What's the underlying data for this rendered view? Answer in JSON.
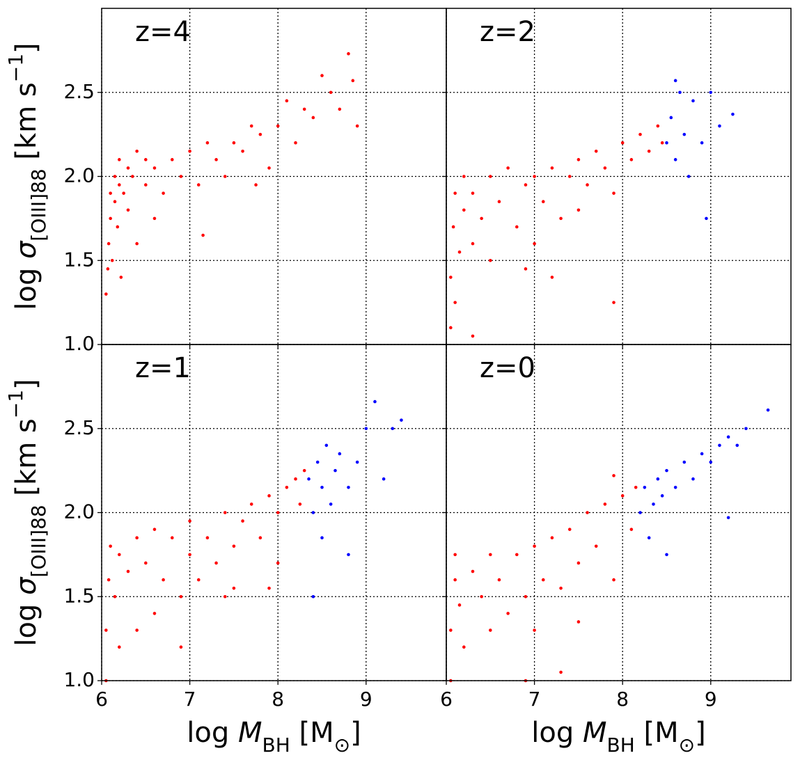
{
  "chart_data": [
    {
      "type": "scatter",
      "annotation": "z=4",
      "ylabel": [
        "log ",
        "σ",
        "[OIII]88",
        " [km s",
        "−1",
        "]"
      ],
      "xlim": [
        6,
        9.91
      ],
      "ylim": [
        1,
        3
      ],
      "xticks": [
        6,
        7,
        8,
        9
      ],
      "yticks": [
        {
          "value": 1,
          "label": "1.0"
        },
        1.5,
        {
          "value": 2,
          "label": "2.0"
        },
        2.5
      ],
      "grid": true,
      "series": [
        {
          "color": "#ff0000",
          "x": [
            6.05,
            6.07,
            6.08,
            6.1,
            6.1,
            6.12,
            6.15,
            6.15,
            6.18,
            6.2,
            6.2,
            6.25,
            6.3,
            6.3,
            6.35,
            6.4,
            6.4,
            6.5,
            6.5,
            6.6,
            6.7,
            6.8,
            6.9,
            7.0,
            7.1,
            7.2,
            7.3,
            7.4,
            7.5,
            7.6,
            7.7,
            7.8,
            7.9,
            8.0,
            8.1,
            8.2,
            8.3,
            8.4,
            8.5,
            8.6,
            8.7,
            8.8,
            8.9,
            8.85,
            6.22,
            6.6,
            7.15,
            7.75
          ],
          "values": [
            1.3,
            1.45,
            1.6,
            1.75,
            1.9,
            1.5,
            1.85,
            2.0,
            1.7,
            1.95,
            2.1,
            1.9,
            2.05,
            1.8,
            2.0,
            2.15,
            1.6,
            1.95,
            2.1,
            2.05,
            1.9,
            2.1,
            2.0,
            2.15,
            1.95,
            2.2,
            2.1,
            2.0,
            2.2,
            2.15,
            2.3,
            2.25,
            2.05,
            2.3,
            2.45,
            2.2,
            2.4,
            2.35,
            2.6,
            2.5,
            2.4,
            2.73,
            2.3,
            2.57,
            1.4,
            1.75,
            1.65,
            1.95
          ]
        }
      ]
    },
    {
      "type": "scatter",
      "annotation": "z=2",
      "xlim": [
        6,
        9.91
      ],
      "ylim": [
        1,
        3
      ],
      "xticks": [
        6,
        7,
        8,
        9
      ],
      "yticks": [
        1,
        1.5,
        2,
        2.5
      ],
      "grid": true,
      "series": [
        {
          "color": "#ff0000",
          "x": [
            6.05,
            6.05,
            6.08,
            6.1,
            6.1,
            6.15,
            6.2,
            6.2,
            6.3,
            6.3,
            6.4,
            6.5,
            6.5,
            6.6,
            6.7,
            6.8,
            6.9,
            7.0,
            7.0,
            7.1,
            7.2,
            7.3,
            7.4,
            7.5,
            7.5,
            7.6,
            7.7,
            7.8,
            7.9,
            8.0,
            8.1,
            8.2,
            8.3,
            8.4,
            8.45,
            7.9,
            7.2,
            6.9,
            6.3
          ],
          "values": [
            1.1,
            1.4,
            1.7,
            1.9,
            1.25,
            1.55,
            1.8,
            2.0,
            1.6,
            1.9,
            1.75,
            2.0,
            1.5,
            1.85,
            2.05,
            1.7,
            1.95,
            2.0,
            1.6,
            1.85,
            2.05,
            1.75,
            2.0,
            2.1,
            1.8,
            1.95,
            2.15,
            2.05,
            1.9,
            2.2,
            2.1,
            2.25,
            2.15,
            2.3,
            2.2,
            1.25,
            1.4,
            1.45,
            1.05
          ]
        },
        {
          "color": "#0000ff",
          "x": [
            8.5,
            8.55,
            8.6,
            8.65,
            8.7,
            8.75,
            8.8,
            8.9,
            9.0,
            9.1,
            9.25,
            8.95,
            8.6
          ],
          "values": [
            2.2,
            2.35,
            2.1,
            2.5,
            2.25,
            2.0,
            2.45,
            2.2,
            2.5,
            2.3,
            2.37,
            1.75,
            2.57
          ]
        }
      ]
    },
    {
      "type": "scatter",
      "annotation": "z=1",
      "xlabel": [
        "log ",
        "M",
        "BH",
        " [M",
        "⊙",
        "]"
      ],
      "ylabel": [
        "log ",
        "σ",
        "[OIII]88",
        " [km s",
        "−1",
        "]"
      ],
      "xlim": [
        6,
        9.91
      ],
      "ylim": [
        1,
        3
      ],
      "xticks": [
        6,
        7,
        8,
        9
      ],
      "yticks": [
        {
          "value": 1,
          "label": "1.0"
        },
        1.5,
        {
          "value": 2,
          "label": "2.0"
        },
        2.5
      ],
      "grid": true,
      "series": [
        {
          "color": "#ff0000",
          "x": [
            6.05,
            6.05,
            6.08,
            6.1,
            6.15,
            6.2,
            6.2,
            6.3,
            6.4,
            6.4,
            6.5,
            6.6,
            6.6,
            6.7,
            6.8,
            6.9,
            7.0,
            7.0,
            7.1,
            7.2,
            7.3,
            7.4,
            7.5,
            7.5,
            7.6,
            7.7,
            7.8,
            7.9,
            8.0,
            8.0,
            8.1,
            8.2,
            8.25,
            8.3,
            6.9,
            7.4,
            7.9
          ],
          "values": [
            1.0,
            1.3,
            1.6,
            1.8,
            1.5,
            1.75,
            1.2,
            1.65,
            1.85,
            1.3,
            1.7,
            1.9,
            1.4,
            1.6,
            1.85,
            1.5,
            1.75,
            1.95,
            1.6,
            1.85,
            1.7,
            2.0,
            1.8,
            1.55,
            1.95,
            2.05,
            1.85,
            2.1,
            2.0,
            1.7,
            2.15,
            2.2,
            2.05,
            2.25,
            1.2,
            1.5,
            1.55
          ]
        },
        {
          "color": "#0000ff",
          "x": [
            8.35,
            8.4,
            8.45,
            8.5,
            8.55,
            8.6,
            8.65,
            8.7,
            8.8,
            8.9,
            9.0,
            9.1,
            9.3,
            9.4,
            8.4,
            8.8,
            8.5,
            9.2
          ],
          "values": [
            2.2,
            2.0,
            2.3,
            2.15,
            2.4,
            2.05,
            2.25,
            2.35,
            2.15,
            2.3,
            2.5,
            2.66,
            2.5,
            2.55,
            1.5,
            1.75,
            1.85,
            2.2
          ]
        }
      ]
    },
    {
      "type": "scatter",
      "annotation": "z=0",
      "xlabel": [
        "log ",
        "M",
        "BH",
        " [M",
        "⊙",
        "]"
      ],
      "xlim": [
        6,
        9.91
      ],
      "ylim": [
        1,
        3
      ],
      "xticks": [
        6,
        7,
        8,
        9
      ],
      "yticks": [
        1,
        1.5,
        2,
        2.5
      ],
      "grid": true,
      "series": [
        {
          "color": "#ff0000",
          "x": [
            6.05,
            6.05,
            6.1,
            6.1,
            6.15,
            6.2,
            6.3,
            6.4,
            6.5,
            6.5,
            6.6,
            6.7,
            6.8,
            6.9,
            7.0,
            7.0,
            7.1,
            7.2,
            7.3,
            7.4,
            7.5,
            7.5,
            7.6,
            7.7,
            7.8,
            7.9,
            8.0,
            8.1,
            8.15,
            7.9,
            7.3,
            6.9
          ],
          "values": [
            1.0,
            1.3,
            1.6,
            1.75,
            1.45,
            1.2,
            1.65,
            1.5,
            1.75,
            1.3,
            1.6,
            1.4,
            1.75,
            1.5,
            1.8,
            1.3,
            1.6,
            1.85,
            1.55,
            1.9,
            1.7,
            1.35,
            2.0,
            1.8,
            2.05,
            1.6,
            2.1,
            1.9,
            2.15,
            2.22,
            1.05,
            1.0
          ]
        },
        {
          "color": "#0000ff",
          "x": [
            8.2,
            8.25,
            8.3,
            8.35,
            8.4,
            8.5,
            8.6,
            8.7,
            8.8,
            8.9,
            9.0,
            9.1,
            9.2,
            9.3,
            9.4,
            9.65,
            8.5,
            9.2,
            8.45
          ],
          "values": [
            2.0,
            2.15,
            1.85,
            2.05,
            2.2,
            2.25,
            2.15,
            2.3,
            2.2,
            2.35,
            2.3,
            2.4,
            2.45,
            2.4,
            2.5,
            2.61,
            1.75,
            1.97,
            2.1
          ]
        }
      ]
    }
  ]
}
